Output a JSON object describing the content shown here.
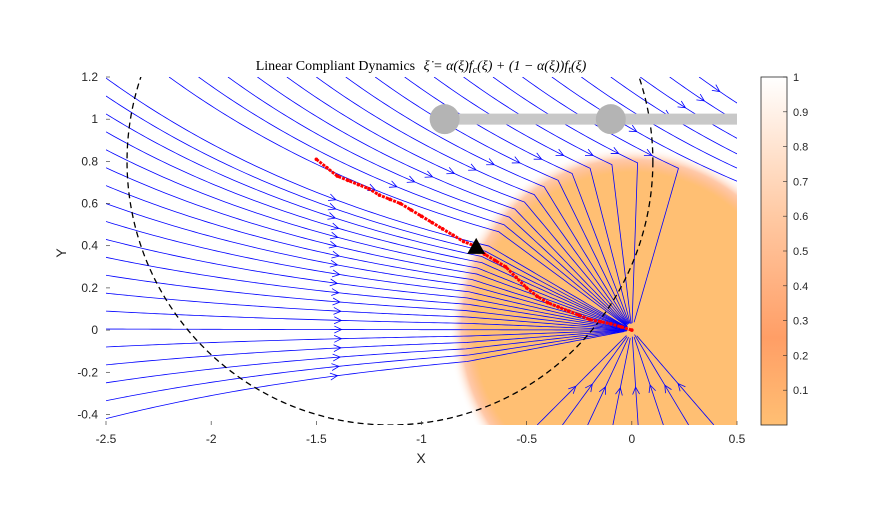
{
  "chart_data": {
    "type": "streamplot",
    "title": "Linear Compliant Dynamics",
    "title_math": "ξ̇ = α(ξ)f",
    "title_math_sub1": "c",
    "title_math_mid": "(ξ) + (1 − α(ξ))f",
    "title_math_sub2": "t",
    "title_math_end": "(ξ)",
    "xlabel": "X",
    "ylabel": "Y",
    "xlim": [
      -2.5,
      0.5
    ],
    "ylim": [
      -0.45,
      1.2
    ],
    "xticks": [
      "-2.5",
      "-2",
      "-1.5",
      "-1",
      "-0.5",
      "0",
      "0.5"
    ],
    "xtick_values": [
      -2.5,
      -2,
      -1.5,
      -1,
      -0.5,
      0,
      0.5
    ],
    "yticks": [
      "-0.4",
      "-0.2",
      "0",
      "0.2",
      "0.4",
      "0.6",
      "0.8",
      "1",
      "1.2"
    ],
    "ytick_values": [
      -0.4,
      -0.2,
      0,
      0.2,
      0.4,
      0.6,
      0.8,
      1,
      1.2
    ],
    "colorbar": {
      "ticks": [
        "0.1",
        "0.2",
        "0.3",
        "0.4",
        "0.5",
        "0.6",
        "0.7",
        "0.8",
        "0.9",
        "1"
      ],
      "tick_values": [
        0.1,
        0.2,
        0.3,
        0.4,
        0.5,
        0.6,
        0.7,
        0.8,
        0.9,
        1.0
      ],
      "range": [
        0,
        1
      ],
      "low_color": "#ffbf73",
      "mid_color": "#ff9e66",
      "high_color": "#ffffff"
    },
    "alpha_region": {
      "description_shape": "disc",
      "center": [
        0.0,
        0.0
      ],
      "radius": 0.8,
      "blur_width": 0.07,
      "inside_alpha": 0.0,
      "outside_alpha": 1.0
    },
    "boundary_circle": {
      "center": [
        -1.15,
        0.8
      ],
      "radius": 1.25,
      "style": "dashed",
      "color": "#000000"
    },
    "target_point": [
      0.0,
      0.0
    ],
    "start_marker": {
      "x": -0.74,
      "y": 0.39,
      "shape": "triangle",
      "color": "#000000"
    },
    "trajectory": {
      "color": "#ff0000",
      "points": [
        [
          -1.5,
          0.81
        ],
        [
          -1.45,
          0.77
        ],
        [
          -1.4,
          0.73
        ],
        [
          -1.35,
          0.71
        ],
        [
          -1.3,
          0.69
        ],
        [
          -1.25,
          0.67
        ],
        [
          -1.2,
          0.64
        ],
        [
          -1.15,
          0.62
        ],
        [
          -1.1,
          0.6
        ],
        [
          -1.05,
          0.57
        ],
        [
          -1.0,
          0.54
        ],
        [
          -0.95,
          0.51
        ],
        [
          -0.9,
          0.48
        ],
        [
          -0.85,
          0.45
        ],
        [
          -0.8,
          0.42
        ],
        [
          -0.75,
          0.4
        ],
        [
          -0.7,
          0.36
        ],
        [
          -0.65,
          0.33
        ],
        [
          -0.6,
          0.3
        ],
        [
          -0.55,
          0.25
        ],
        [
          -0.5,
          0.2
        ],
        [
          -0.45,
          0.16
        ],
        [
          -0.4,
          0.13
        ],
        [
          -0.35,
          0.11
        ],
        [
          -0.3,
          0.09
        ],
        [
          -0.25,
          0.07
        ],
        [
          -0.2,
          0.05
        ],
        [
          -0.15,
          0.04
        ],
        [
          -0.1,
          0.03
        ],
        [
          -0.05,
          0.015
        ],
        [
          0.0,
          0.0
        ]
      ]
    },
    "robot_arm": {
      "color": "#c8c8c8",
      "bar_y": 1.0,
      "bar_x": [
        -0.92,
        0.5
      ],
      "joints_x": [
        -0.89,
        -0.1
      ]
    },
    "streamline_color": "#0000ff"
  }
}
